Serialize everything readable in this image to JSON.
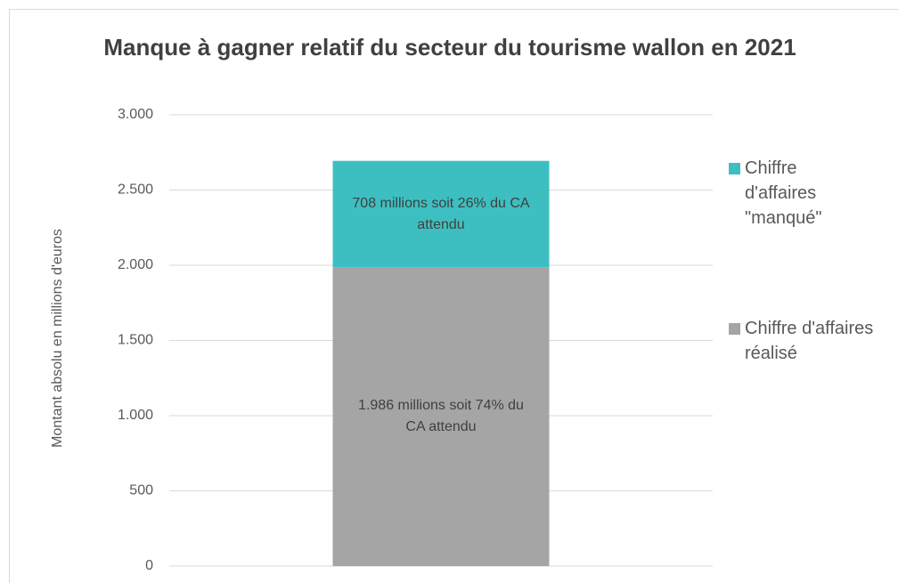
{
  "chart_data": {
    "type": "stacked_bar",
    "title": "Manque à gagner relatif du secteur du tourisme wallon en 2021",
    "y_label": "Montant absolu en millions d'euros",
    "categories": [
      null
    ],
    "series": [
      {
        "name": "Chiffre d'affaires réalisé",
        "color": "#a5a5a5",
        "values": [
          1986
        ],
        "value_labels": [
          "1.986 millions soit 74% du CA attendu"
        ]
      },
      {
        "name": "Chiffre d'affaires \"manqué\"",
        "color": "#3dbfc1",
        "values": [
          708
        ],
        "value_labels": [
          "708 millions soit 26% du CA attendu"
        ]
      }
    ],
    "ylim": [
      0,
      3000
    ],
    "yticks": [
      0,
      500,
      {
        "value": 1000,
        "label": "1.000"
      },
      {
        "value": 1500,
        "label": "1.500"
      },
      {
        "value": 2000,
        "label": "2.000"
      },
      {
        "value": 2500,
        "label": "2.500"
      },
      {
        "value": 3000,
        "label": "3.000"
      }
    ],
    "grid": true,
    "legend": "right"
  }
}
